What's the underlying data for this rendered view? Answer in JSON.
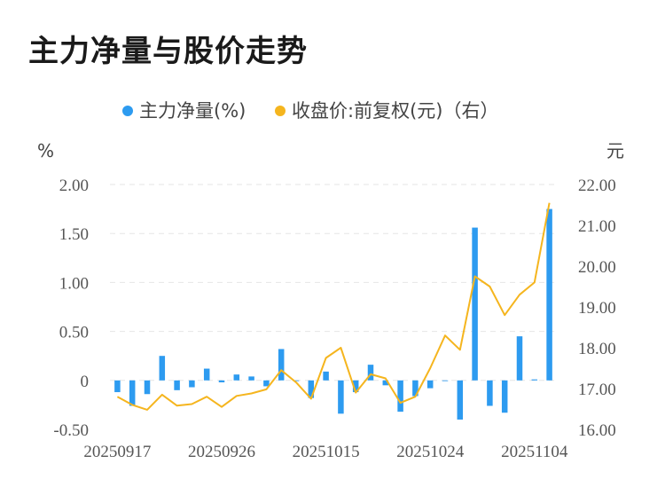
{
  "title": "主力净量与股价走势",
  "chart_data": {
    "type": "bar+line",
    "legend": [
      {
        "name": "主力净量(%)",
        "color": "#2d9bf0",
        "marker": "dot"
      },
      {
        "name": "收盘价:前复权(元)（右）",
        "color": "#f5b51e",
        "marker": "dot"
      }
    ],
    "left_axis": {
      "unit": "%",
      "min": -0.5,
      "max": 2.0,
      "ticks": [
        "2.00",
        "1.50",
        "1.00",
        "0.50",
        "0",
        "-0.50"
      ]
    },
    "right_axis": {
      "unit": "元",
      "min": 16.0,
      "max": 22.0,
      "ticks": [
        "22.00",
        "21.00",
        "20.00",
        "19.00",
        "18.00",
        "17.00",
        "16.00"
      ]
    },
    "x_ticks": [
      {
        "label": "20250917",
        "index": 0
      },
      {
        "label": "20250926",
        "index": 7
      },
      {
        "label": "20251015",
        "index": 14
      },
      {
        "label": "20251024",
        "index": 21
      },
      {
        "label": "20251104",
        "index": 28
      }
    ],
    "n_points": 30,
    "series": [
      {
        "name": "主力净量(%)",
        "kind": "bar",
        "color": "#2d9bf0",
        "values": [
          -0.12,
          -0.26,
          -0.14,
          0.25,
          -0.1,
          -0.07,
          0.12,
          -0.02,
          0.06,
          0.04,
          -0.06,
          0.32,
          0.0,
          -0.18,
          0.09,
          -0.34,
          -0.12,
          0.16,
          -0.05,
          -0.32,
          -0.16,
          -0.08,
          0.0,
          -0.4,
          1.56,
          -0.26,
          -0.33,
          0.45,
          0.01,
          1.75
        ]
      },
      {
        "name": "收盘价:前复权(元)（右）",
        "kind": "line",
        "color": "#f5b51e",
        "values": [
          16.8,
          16.6,
          16.48,
          16.85,
          16.58,
          16.62,
          16.8,
          16.55,
          16.82,
          16.88,
          16.98,
          17.45,
          17.15,
          16.75,
          17.75,
          18.0,
          16.9,
          17.35,
          17.25,
          16.65,
          16.8,
          17.5,
          18.3,
          17.95,
          19.75,
          19.5,
          18.8,
          19.3,
          19.6,
          21.55
        ]
      }
    ],
    "grid": "dashed-horizontal"
  }
}
